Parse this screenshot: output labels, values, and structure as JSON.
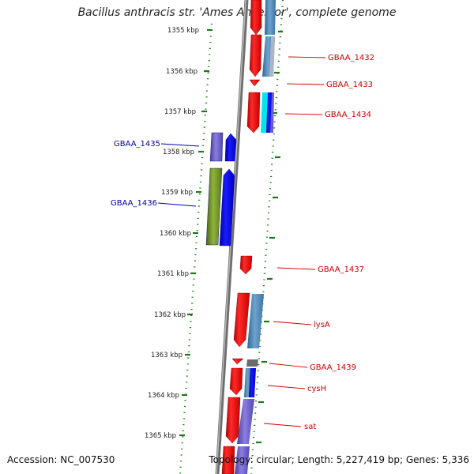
{
  "title": "Bacillus anthracis str. 'Ames Ancestor', complete genome",
  "ticks": [
    "1355 kbp",
    "1356 kbp",
    "1357 kbp",
    "1358 kbp",
    "1359 kbp",
    "1360 kbp",
    "1361 kbp",
    "1362 kbp",
    "1363 kbp",
    "1364 kbp",
    "1365 kbp"
  ],
  "genes_right": [
    "GBAA_1432",
    "GBAA_1433",
    "GBAA_1434",
    "GBAA_1437",
    "lysA",
    "GBAA_1439",
    "cysH",
    "sat"
  ],
  "genes_left": [
    "GBAA_1435",
    "GBAA_1436"
  ],
  "colors": {
    "forward": "#ff0000",
    "reverse": "#0000ff",
    "cog_blue": "#4682b4",
    "cog_purple": "#6a5acd",
    "cog_green": "#6b8e23",
    "cog_cyan": "#00e5ee",
    "backbone": "#808080",
    "tick": "#1a7a1a",
    "label_right": "#cc0000",
    "label_left": "#0000aa"
  },
  "footer": {
    "accession": "Accession: NC_007530",
    "topology": "Topology: circular; Length: 5,227,419 bp; Genes: 5,336"
  }
}
